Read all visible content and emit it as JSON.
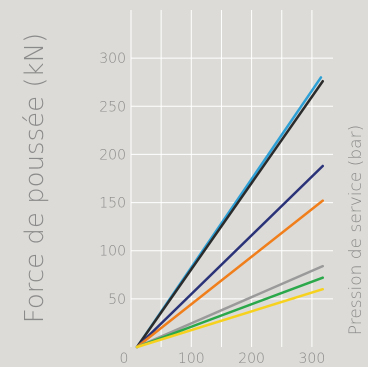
{
  "chart_data": {
    "type": "line",
    "title": "",
    "ylabel": "Force de poussée (kN)",
    "xlabel": "Pression de service (bar)",
    "xlim": [
      0,
      335
    ],
    "ylim": [
      0,
      350
    ],
    "x_ticks": [
      0,
      100,
      200,
      300
    ],
    "y_ticks": [
      50,
      100,
      150,
      200,
      250,
      300
    ],
    "x_tick_labels": [
      "0",
      "100",
      "200",
      "300"
    ],
    "y_tick_labels": [
      "50",
      "100",
      "150",
      "200",
      "250",
      "300"
    ],
    "grid": true,
    "legend": "none",
    "series": [
      {
        "color": "#2ea0d6",
        "x": [
          10,
          315
        ],
        "y": [
          0,
          280
        ]
      },
      {
        "color": "#2b2b2b",
        "x": [
          10,
          318
        ],
        "y": [
          0,
          276
        ]
      },
      {
        "color": "#2a3278",
        "x": [
          10,
          318
        ],
        "y": [
          0,
          188
        ]
      },
      {
        "color": "#f07e1a",
        "x": [
          10,
          318
        ],
        "y": [
          0,
          152
        ]
      },
      {
        "color": "#9a9a9a",
        "x": [
          10,
          318
        ],
        "y": [
          0,
          84
        ]
      },
      {
        "color": "#2aa84a",
        "x": [
          10,
          318
        ],
        "y": [
          0,
          72
        ]
      },
      {
        "color": "#f6d21e",
        "x": [
          10,
          318
        ],
        "y": [
          0,
          60
        ]
      }
    ]
  }
}
